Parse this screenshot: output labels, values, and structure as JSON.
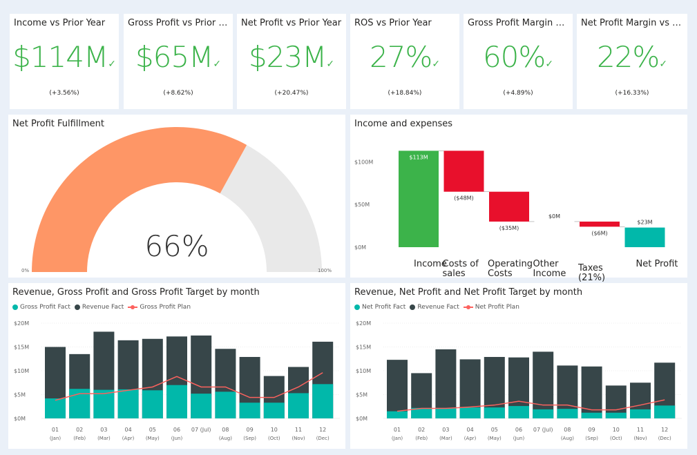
{
  "kpis": [
    {
      "title": "Income vs Prior Year",
      "value": "$114M",
      "change": "(+3.56%)"
    },
    {
      "title": "Gross Profit vs Prior Year",
      "value": "$65M",
      "change": "(+8.62%)"
    },
    {
      "title": "Net Profit vs Prior Year",
      "value": "$23M",
      "change": "(+20.47%)"
    },
    {
      "title": "ROS vs Prior Year",
      "value": "27%",
      "change": "(+18.84%)"
    },
    {
      "title": "Gross Profit Margin vs P...",
      "value": "60%",
      "change": "(+4.89%)"
    },
    {
      "title": "Net Profit Margin vs Pri...",
      "value": "22%",
      "change": "(+16.33%)"
    }
  ],
  "check_glyph": "✓",
  "gauge": {
    "title": "Net Profit Fulfillment",
    "value_label": "66%",
    "min_label": "0%",
    "max_label": "100%",
    "fraction": 0.66,
    "fill_color": "#fe9666",
    "track_color": "#e9e9e9"
  },
  "colors": {
    "green": "#3cb34a",
    "red": "#e8102c",
    "teal": "#01b8aa",
    "dark": "#374649",
    "plan_line": "#fd625e"
  },
  "chart_data": [
    {
      "type": "bar",
      "subtype": "waterfall",
      "title": "Income and expenses",
      "categories": [
        "Income",
        "Costs of sales",
        "Operating Costs",
        "Other Income",
        "Taxes (21%)",
        "Net Profit"
      ],
      "category_lines": [
        [
          "Income"
        ],
        [
          "Costs of",
          "sales"
        ],
        [
          "Operating",
          "Costs"
        ],
        [
          "Other",
          "Income"
        ],
        [
          "Taxes",
          "(21%)"
        ],
        [
          "Net Profit"
        ]
      ],
      "values": [
        113,
        -48,
        -35,
        0,
        -6,
        23
      ],
      "data_labels": [
        "$113M",
        "($48M)",
        "($35M)",
        "$0M",
        "($6M)",
        "$23M"
      ],
      "y_ticks": [
        "$0M",
        "$50M",
        "$100M"
      ],
      "y_tick_values": [
        0,
        50,
        100
      ],
      "ylim": [
        0,
        123
      ],
      "grid": false
    },
    {
      "type": "bar",
      "subtype": "overlapped-bar-with-line",
      "title": "Revenue, Gross Profit and Gross Profit Target by month",
      "legend": [
        "Gross Profit Fact",
        "Revenue Fact",
        "Gross Profit Plan"
      ],
      "legend_position": "top-left",
      "categories": [
        "01 (Jan)",
        "02 (Feb)",
        "03 (Mar)",
        "04 (Apr)",
        "05 (May)",
        "06 (Jun)",
        "07 (Jul)",
        "08 (Aug)",
        "09 (Sep)",
        "10 (Oct)",
        "11 (Nov)",
        "12 (Dec)"
      ],
      "category_lines": [
        [
          "01",
          "(Jan)"
        ],
        [
          "02",
          "(Feb)"
        ],
        [
          "03",
          "(Mar)"
        ],
        [
          "04",
          "(Apr)"
        ],
        [
          "05",
          "(May)"
        ],
        [
          "06",
          "(Jun)"
        ],
        [
          "07 (Jul)",
          ""
        ],
        [
          "08",
          "(Aug)"
        ],
        [
          "09",
          "(Sep)"
        ],
        [
          "10",
          "(Oct)"
        ],
        [
          "11",
          "(Nov)"
        ],
        [
          "12",
          "(Dec)"
        ]
      ],
      "series": [
        {
          "name": "Revenue Fact",
          "kind": "bar",
          "values": [
            15.0,
            13.5,
            18.2,
            16.4,
            16.7,
            17.2,
            17.4,
            14.6,
            12.9,
            8.9,
            10.8,
            16.1
          ]
        },
        {
          "name": "Gross Profit Fact",
          "kind": "bar",
          "values": [
            4.2,
            6.2,
            6.0,
            6.1,
            5.9,
            7.0,
            5.2,
            5.6,
            3.3,
            3.3,
            5.3,
            7.2
          ]
        },
        {
          "name": "Gross Profit Plan",
          "kind": "line",
          "values": [
            3.8,
            5.2,
            5.2,
            5.9,
            6.6,
            8.8,
            6.6,
            6.6,
            4.4,
            4.4,
            6.6,
            9.6
          ]
        }
      ],
      "y_ticks": [
        "$0M",
        "$5M",
        "$10M",
        "$15M",
        "$20M"
      ],
      "y_tick_values": [
        0,
        5,
        10,
        15,
        20
      ],
      "ylim": [
        0,
        20
      ],
      "grid": true
    },
    {
      "type": "bar",
      "subtype": "overlapped-bar-with-line",
      "title": "Revenue, Net Profit and Net Profit Target by month",
      "legend": [
        "Net Profit Fact",
        "Revenue Fact",
        "Net Profit Plan"
      ],
      "legend_position": "top-left",
      "categories": [
        "01 (Jan)",
        "02 (Feb)",
        "03 (Mar)",
        "04 (Apr)",
        "05 (May)",
        "06 (Jun)",
        "07 (Jul)",
        "08 (Aug)",
        "09 (Sep)",
        "10 (Oct)",
        "11 (Nov)",
        "12 (Dec)"
      ],
      "category_lines": [
        [
          "01",
          "(Jan)"
        ],
        [
          "02",
          "(Feb)"
        ],
        [
          "03",
          "(Mar)"
        ],
        [
          "04",
          "(Apr)"
        ],
        [
          "05",
          "(May)"
        ],
        [
          "06",
          "(Jun)"
        ],
        [
          "07 (Jul)",
          ""
        ],
        [
          "08",
          "(Aug)"
        ],
        [
          "09",
          "(Sep)"
        ],
        [
          "10",
          "(Oct)"
        ],
        [
          "11",
          "(Nov)"
        ],
        [
          "12",
          "(Dec)"
        ]
      ],
      "series": [
        {
          "name": "Revenue Fact",
          "kind": "bar",
          "values": [
            12.3,
            9.5,
            14.5,
            12.4,
            12.9,
            12.8,
            14.0,
            11.1,
            10.9,
            6.9,
            7.5,
            11.7
          ]
        },
        {
          "name": "Net Profit Fact",
          "kind": "bar",
          "values": [
            1.5,
            2.2,
            2.2,
            2.3,
            2.3,
            2.6,
            1.9,
            2.0,
            1.2,
            1.2,
            1.9,
            2.7
          ]
        },
        {
          "name": "Net Profit Plan",
          "kind": "line",
          "values": [
            1.5,
            2.1,
            2.1,
            2.4,
            2.8,
            3.6,
            2.8,
            2.8,
            1.8,
            1.8,
            2.8,
            3.9
          ]
        }
      ],
      "y_ticks": [
        "$0M",
        "$5M",
        "$10M",
        "$15M",
        "$20M"
      ],
      "y_tick_values": [
        0,
        5,
        10,
        15,
        20
      ],
      "ylim": [
        0,
        20
      ],
      "grid": true
    }
  ]
}
